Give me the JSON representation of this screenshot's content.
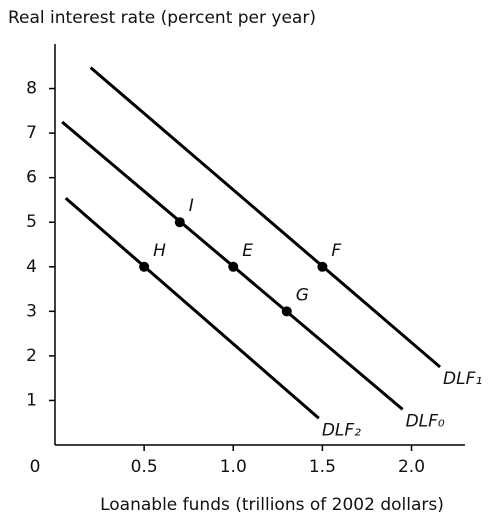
{
  "chart_data": {
    "type": "line",
    "ylabel": "Real interest rate (percent per year)",
    "xlabel": "Loanable funds (trillions of 2002 dollars)",
    "xlim": [
      0,
      2.3
    ],
    "ylim": [
      0,
      9
    ],
    "xticks": [
      0,
      0.5,
      {
        "value": 1,
        "label": "1.0"
      },
      1.5,
      {
        "value": 2,
        "label": "2.0"
      }
    ],
    "yticks": [
      1,
      2,
      3,
      4,
      5,
      6,
      7,
      8
    ],
    "series": [
      {
        "name": "DLF₁",
        "color": "#000000",
        "x": [
          0.2,
          2.16
        ],
        "values": [
          8.47,
          1.75
        ]
      },
      {
        "name": "DLF₀",
        "color": "#000000",
        "x": [
          0.04,
          1.95
        ],
        "values": [
          7.25,
          0.8
        ]
      },
      {
        "name": "DLF₂",
        "color": "#000000",
        "x": [
          0.06,
          1.48
        ],
        "values": [
          5.54,
          0.6
        ]
      }
    ],
    "points": [
      {
        "label": "I",
        "x": 0.7,
        "y": 5
      },
      {
        "label": "H",
        "x": 0.5,
        "y": 4
      },
      {
        "label": "E",
        "x": 1,
        "y": 4
      },
      {
        "label": "F",
        "x": 1.5,
        "y": 4
      },
      {
        "label": "G",
        "x": 1.3,
        "y": 3
      }
    ]
  }
}
